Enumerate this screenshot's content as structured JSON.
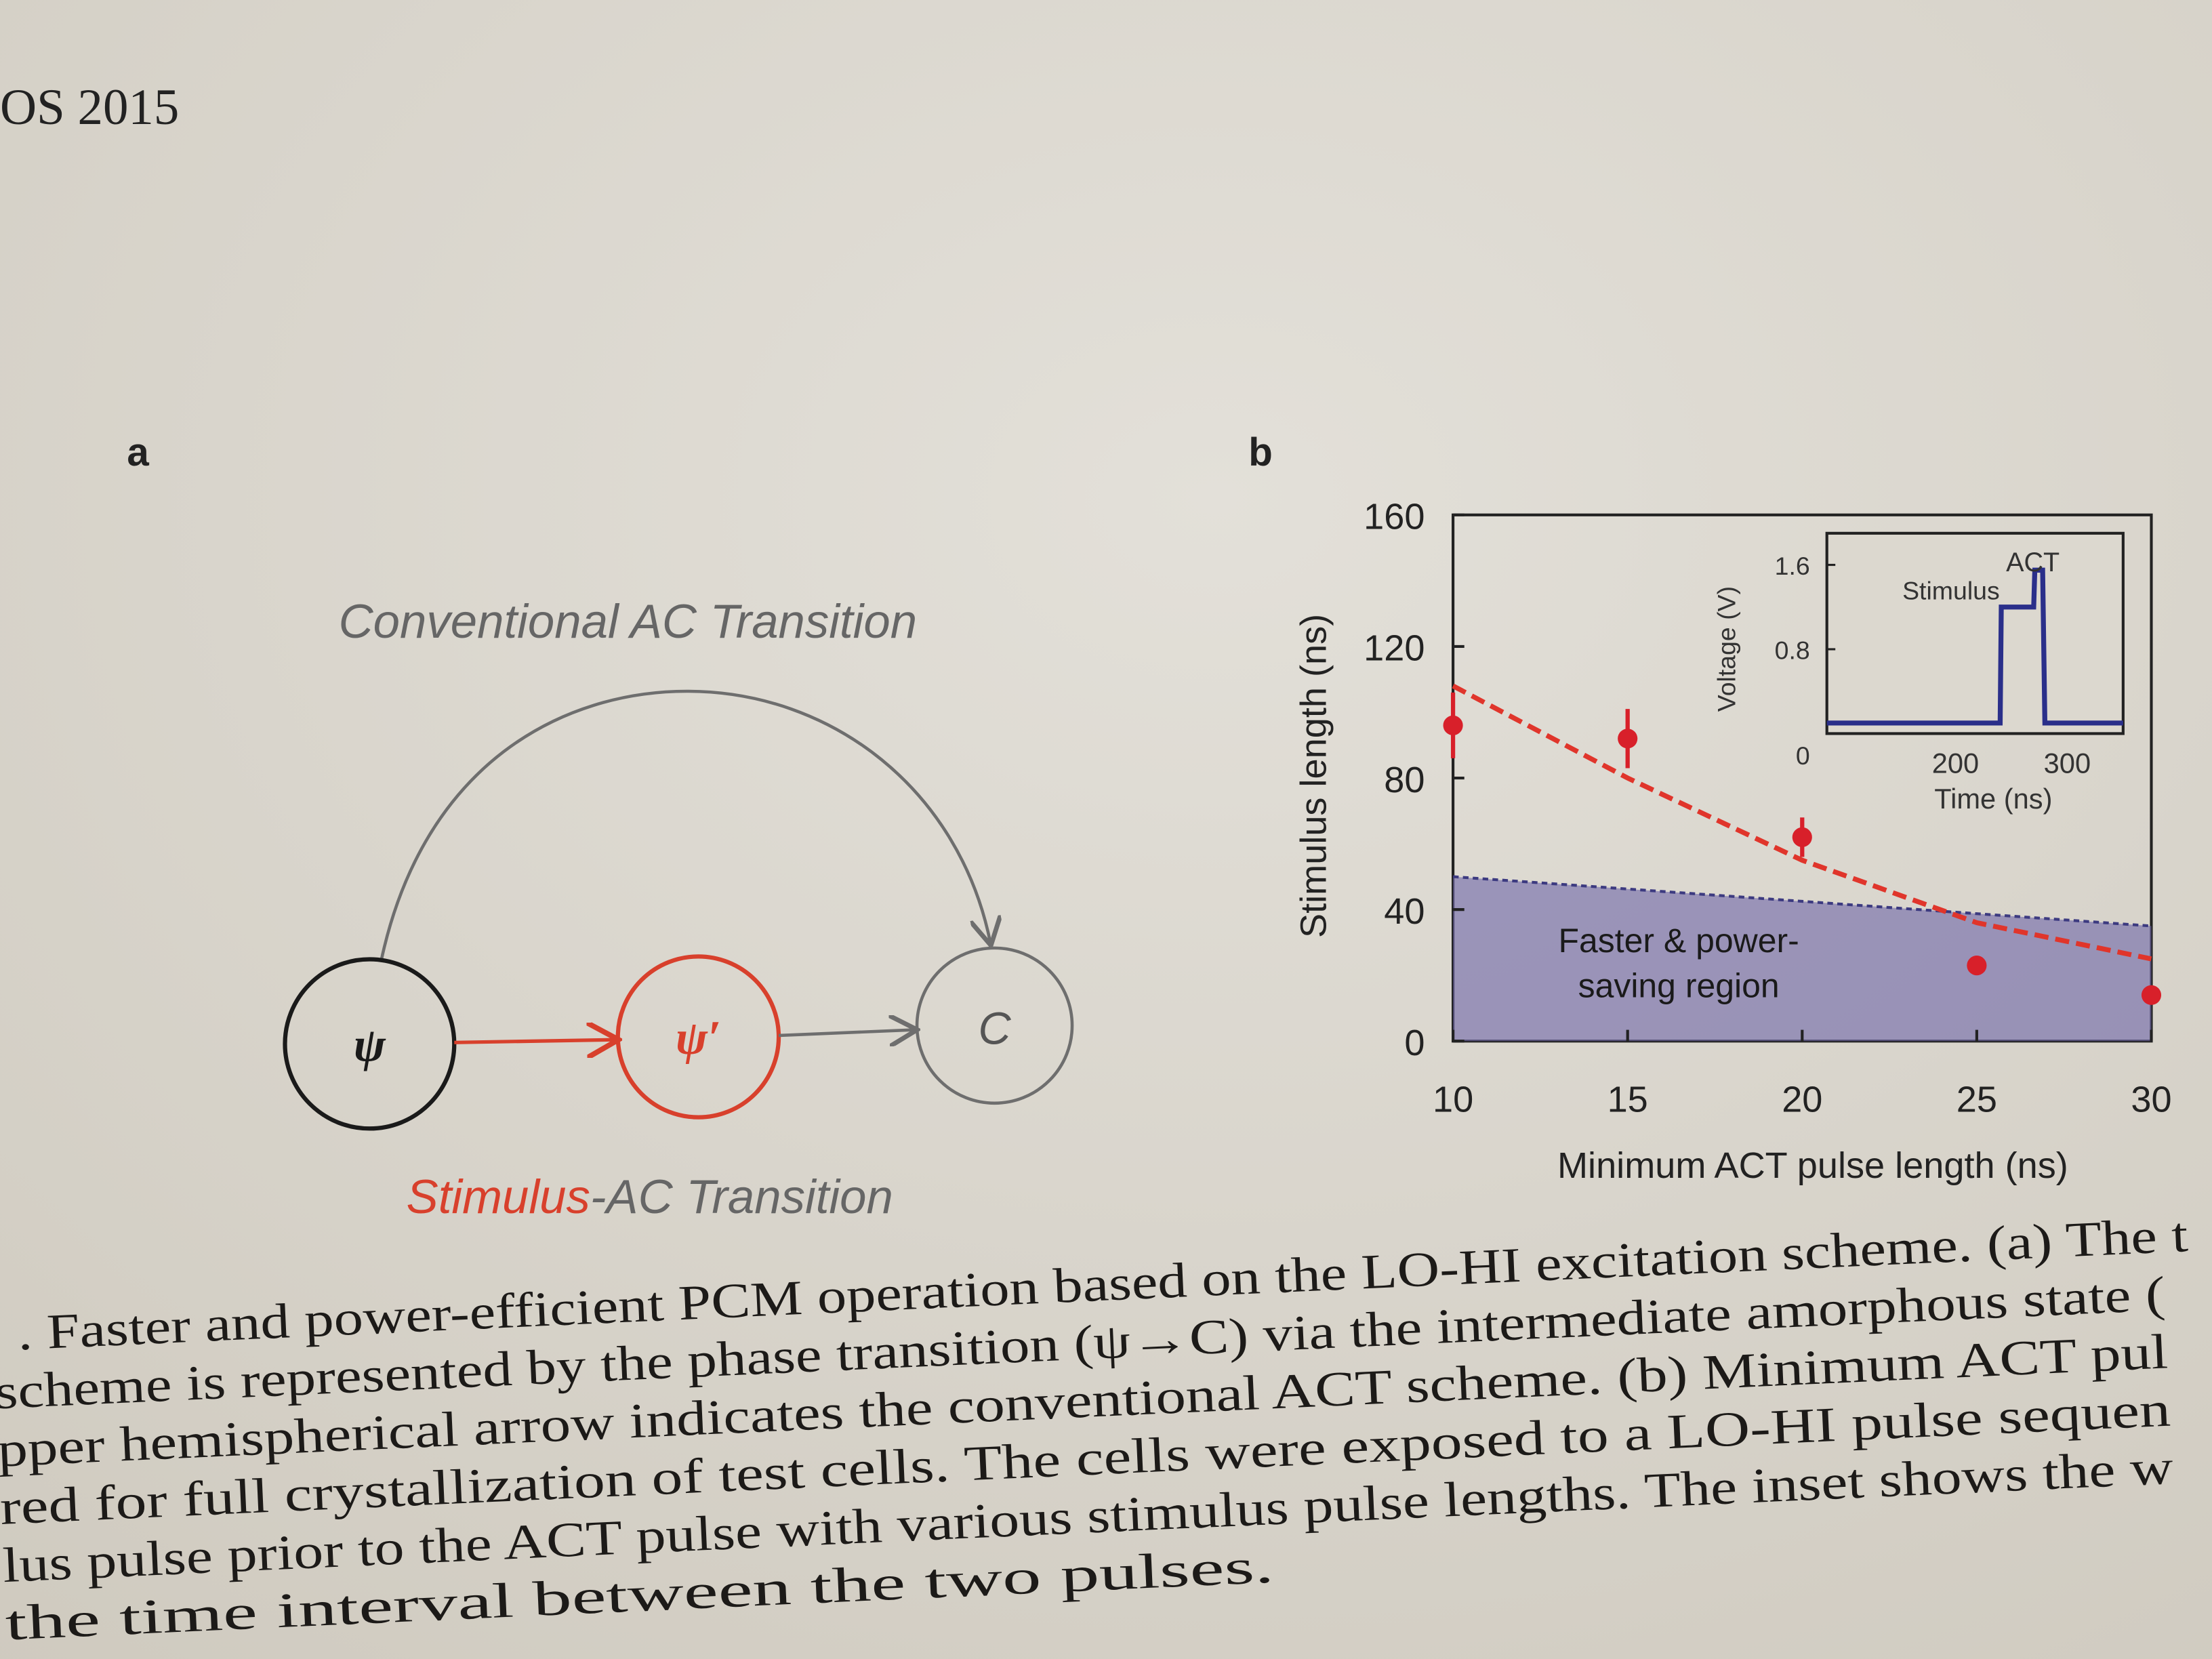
{
  "header": {
    "running_head": "OS 2015"
  },
  "panel_a": {
    "label": "a",
    "conventional_label": "Conventional AC Transition",
    "stimulus_label_red": "Stimulus",
    "stimulus_label_rest": "-AC Transition",
    "nodes": [
      "ψ",
      "ψ′",
      "C"
    ],
    "colors": {
      "red": "#d8402c",
      "black": "#1a1a1a",
      "gray": "#6e6e6e"
    }
  },
  "panel_b": {
    "label": "b"
  },
  "chart_data": [
    {
      "type": "scatter",
      "xlabel": "Minimum ACT pulse length (ns)",
      "ylabel": "Stimulus length (ns)",
      "xlim": [
        10,
        30
      ],
      "ylim": [
        0,
        160
      ],
      "xticks": [
        "10",
        "15",
        "20",
        "25",
        "30"
      ],
      "yticks": [
        "0",
        "40",
        "80",
        "120",
        "160"
      ],
      "points": [
        {
          "x": 10,
          "y": 96,
          "err": 10
        },
        {
          "x": 15,
          "y": 92,
          "err": 9
        },
        {
          "x": 20,
          "y": 62,
          "err": 6
        },
        {
          "x": 25,
          "y": 23,
          "err": 0
        },
        {
          "x": 30,
          "y": 14,
          "err": 0
        }
      ],
      "fit_line": {
        "x": [
          10,
          15,
          20,
          25,
          30
        ],
        "y": [
          108,
          80,
          55,
          36,
          25
        ],
        "style": "dashed",
        "color": "#e0352b"
      },
      "region": {
        "label_line1": "Faster & power-",
        "label_line2": "saving region",
        "upper_boundary": {
          "x": [
            10,
            30
          ],
          "y": [
            50,
            35
          ]
        },
        "color": "#6e66a8"
      },
      "point_color": "#d8202a"
    },
    {
      "type": "line",
      "inset": true,
      "xlabel": "Time (ns)",
      "ylabel": "Voltage (V)",
      "xlim": [
        85,
        350
      ],
      "ylim": [
        0,
        1.9
      ],
      "xticks": [
        "200",
        "300"
      ],
      "yticks": [
        "0",
        "0.8",
        "1.6"
      ],
      "annotations": [
        "Stimulus",
        "ACT"
      ],
      "series": [
        {
          "x": [
            85,
            240,
            241,
            270,
            271,
            278,
            280,
            350
          ],
          "y": [
            0.1,
            0.1,
            1.2,
            1.2,
            1.55,
            1.55,
            0.1,
            0.1
          ]
        }
      ],
      "color": "#2a2f8a"
    }
  ],
  "caption": {
    "lines": [
      ". Faster and power-efficient PCM operation based on the LO-HI excitation scheme. (a) The t",
      "scheme is represented by the phase transition (ψ→C) via the intermediate amorphous state (",
      "pper hemispherical arrow indicates the conventional ACT scheme. (b) Minimum ACT pul",
      "red for full crystallization of test cells. The cells were exposed to a LO-HI pulse sequen",
      "lus pulse prior to the ACT pulse with various stimulus pulse lengths. The inset shows the w",
      "the time interval between the two pulses."
    ]
  }
}
